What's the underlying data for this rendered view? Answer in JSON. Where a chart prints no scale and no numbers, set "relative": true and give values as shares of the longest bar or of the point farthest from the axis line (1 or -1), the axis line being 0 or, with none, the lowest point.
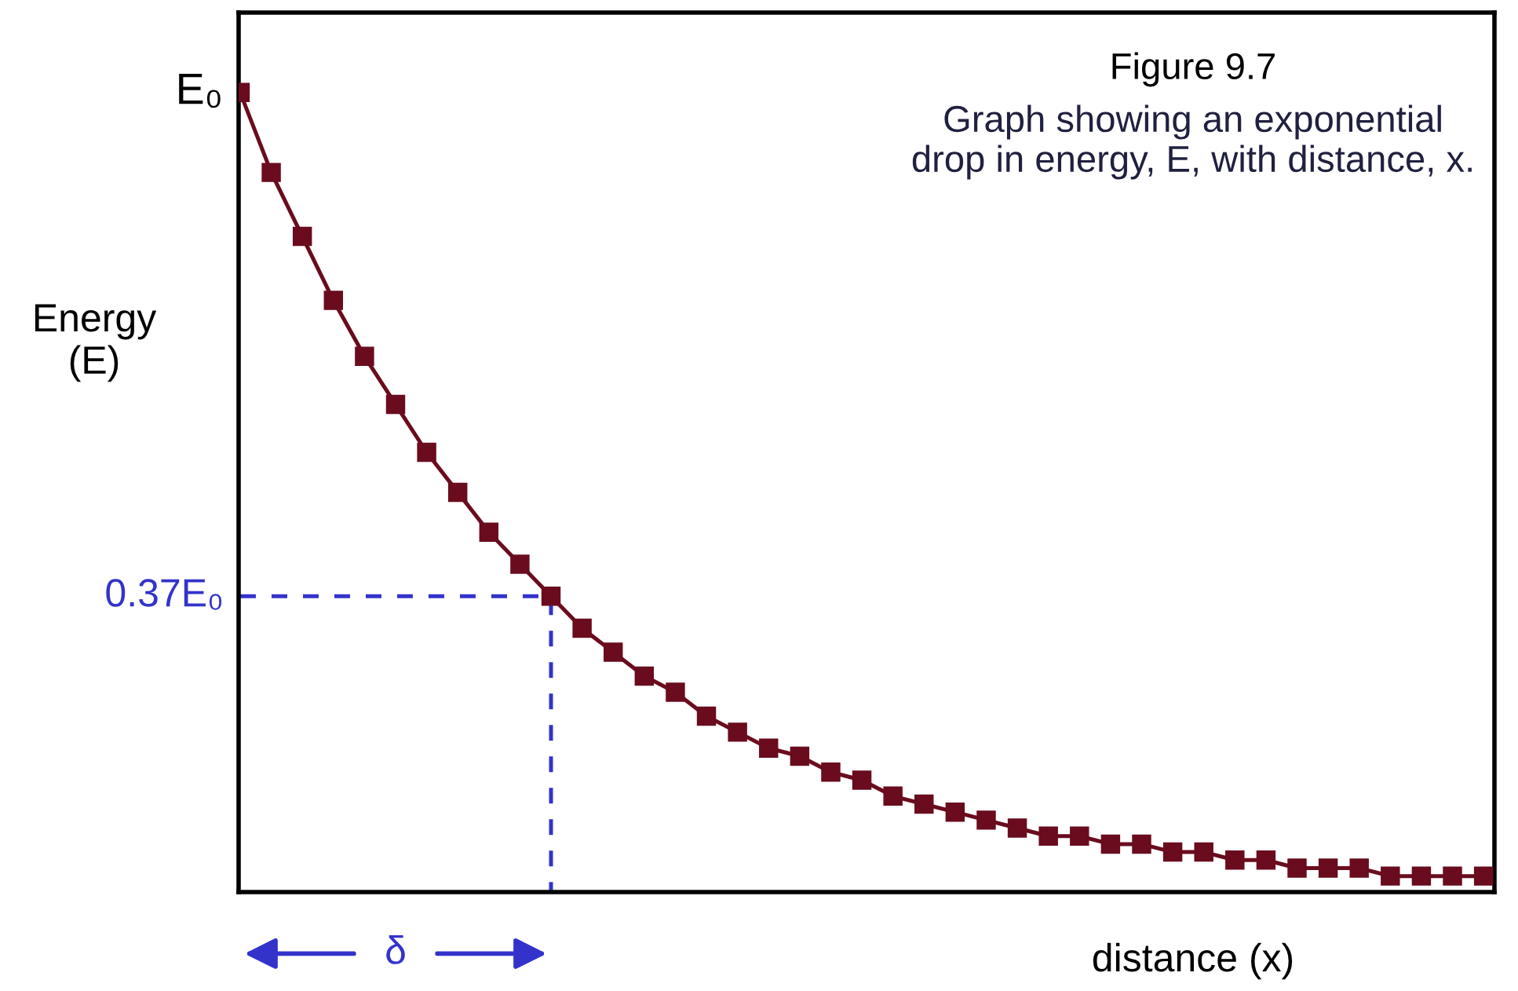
{
  "chart_data": {
    "type": "line",
    "title": "Figure 9.7",
    "subtitle": "Graph showing an exponential\ndrop in energy, E, with distance, x.",
    "xlabel": "distance (x)",
    "ylabel": "Energy\n(E)",
    "categories": [
      null,
      null,
      null,
      null,
      null,
      null,
      null,
      null,
      null,
      null,
      null,
      null,
      null,
      null,
      null,
      null,
      null,
      null,
      null,
      null,
      null,
      null,
      null,
      null,
      null,
      null,
      null,
      null,
      null,
      null,
      null,
      null,
      null,
      null,
      null,
      null,
      null,
      null,
      null,
      null,
      null
    ],
    "series": [
      {
        "color": "#6a0c1e",
        "values": [
          1.0,
          0.9,
          0.82,
          0.74,
          0.67,
          0.61,
          0.55,
          0.5,
          0.45,
          0.41,
          0.37,
          0.33,
          0.3,
          0.27,
          0.25,
          0.22,
          0.2,
          0.18,
          0.17,
          0.15,
          0.14,
          0.12,
          0.11,
          0.1,
          0.09,
          0.08,
          0.07,
          0.07,
          0.06,
          0.06,
          0.05,
          0.05,
          0.04,
          0.04,
          0.03,
          0.03,
          0.03,
          0.02,
          0.02,
          0.02,
          0.02
        ]
      }
    ],
    "marker": "square",
    "line_style": "solid",
    "relative": true,
    "annotations": [
      "E₀",
      "δ"
    ],
    "ref_lines": [
      {
        "axis": "y",
        "value": 0.37,
        "label": "0.37E₀",
        "color": "#3333cc",
        "line_style": "dashed"
      }
    ],
    "legend": false
  }
}
